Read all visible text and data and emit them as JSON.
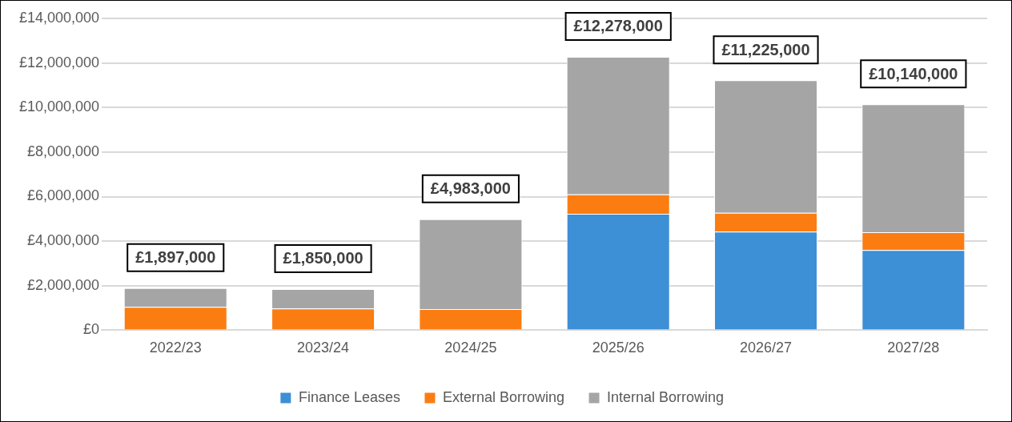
{
  "chart_data": {
    "type": "bar",
    "stacked": true,
    "categories": [
      "2022/23",
      "2023/24",
      "2024/25",
      "2025/26",
      "2026/27",
      "2027/28"
    ],
    "series": [
      {
        "name": "Finance Leases",
        "color": "#3d8fd6",
        "values": [
          0,
          0,
          0,
          5230000,
          4430000,
          3600000
        ]
      },
      {
        "name": "External Borrowing",
        "color": "#fb7d12",
        "values": [
          1050000,
          980000,
          950000,
          870000,
          840000,
          800000
        ]
      },
      {
        "name": "Internal Borrowing",
        "color": "#a5a5a5",
        "values": [
          847000,
          870000,
          4033000,
          6178000,
          5955000,
          5740000
        ]
      }
    ],
    "ylim": [
      0,
      14000000
    ],
    "yticks": [
      {
        "value": 0,
        "label": "£0"
      },
      {
        "value": 2000000,
        "label": "£2,000,000"
      },
      {
        "value": 4000000,
        "label": "£4,000,000"
      },
      {
        "value": 6000000,
        "label": "£6,000,000"
      },
      {
        "value": 8000000,
        "label": "£8,000,000"
      },
      {
        "value": 10000000,
        "label": "£10,000,000"
      },
      {
        "value": 12000000,
        "label": "£12,000,000"
      },
      {
        "value": 14000000,
        "label": "£14,000,000"
      }
    ],
    "totals": [
      "£1,897,000",
      "£1,850,000",
      "£4,983,000",
      "£12,278,000",
      "£11,225,000",
      "£10,140,000"
    ],
    "grid": "y",
    "legend": "bottom"
  }
}
